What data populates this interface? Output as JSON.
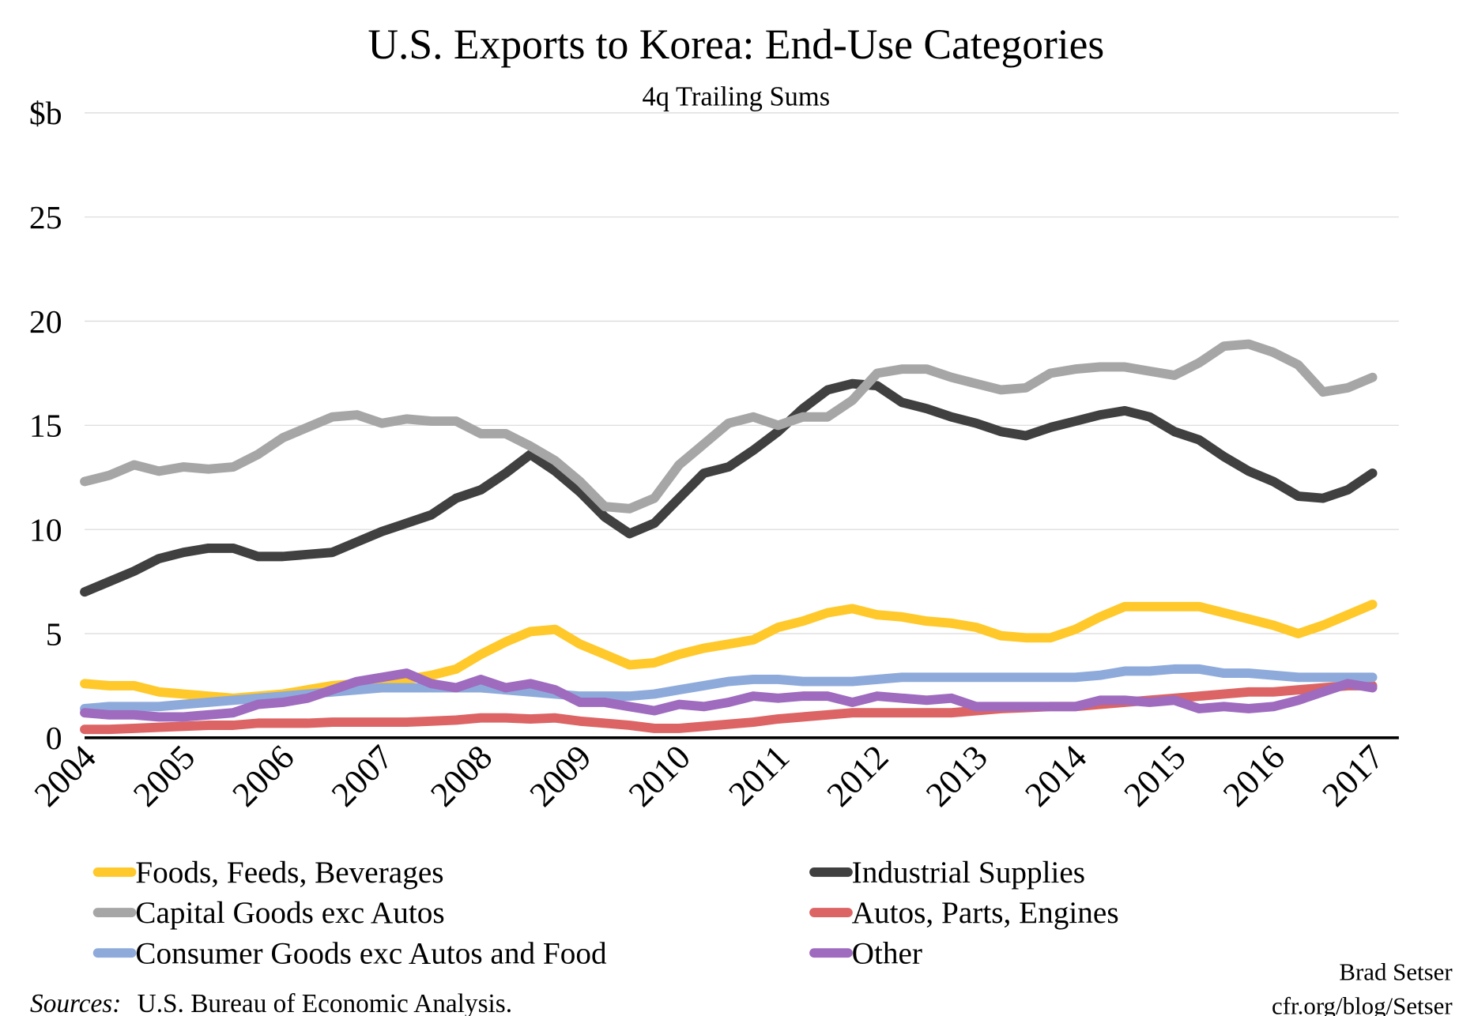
{
  "chart_data": {
    "type": "line",
    "title": "U.S. Exports to Korea: End-Use Categories",
    "subtitle": "4q Trailing Sums",
    "categories": [
      "2004",
      null,
      null,
      null,
      "2005",
      null,
      null,
      null,
      "2006",
      null,
      null,
      null,
      "2007",
      null,
      null,
      null,
      "2008",
      null,
      null,
      null,
      "2009",
      null,
      null,
      null,
      "2010",
      null,
      null,
      null,
      "2011",
      null,
      null,
      null,
      "2012",
      null,
      null,
      null,
      "2013",
      null,
      null,
      null,
      "2014",
      null,
      null,
      null,
      "2015",
      null,
      null,
      null,
      "2016",
      null,
      null,
      null,
      "2017"
    ],
    "ylim": [
      0,
      30
    ],
    "yticks": [
      0,
      5,
      10,
      15,
      20,
      25,
      {
        "value": 30,
        "label": "$b"
      }
    ],
    "grid": true,
    "series": [
      {
        "name": "Foods, Feeds, Beverages",
        "color": "#ffc92b",
        "values": [
          2.6,
          2.5,
          2.5,
          2.2,
          2.1,
          2.0,
          1.9,
          2.0,
          2.1,
          2.3,
          2.5,
          2.6,
          2.7,
          2.8,
          3.0,
          3.3,
          4.0,
          4.6,
          5.1,
          5.2,
          4.5,
          4.0,
          3.5,
          3.6,
          4.0,
          4.3,
          4.5,
          4.7,
          5.3,
          5.6,
          6.0,
          6.2,
          5.9,
          5.8,
          5.6,
          5.5,
          5.3,
          4.9,
          4.8,
          4.8,
          5.2,
          5.8,
          6.3,
          6.3,
          6.3,
          6.3,
          6.0,
          5.7,
          5.4,
          5.0,
          5.4,
          5.9,
          6.4
        ]
      },
      {
        "name": "Industrial Supplies",
        "color": "#404040",
        "values": [
          7.0,
          7.5,
          8.0,
          8.6,
          8.9,
          9.1,
          9.1,
          8.7,
          8.7,
          8.8,
          8.9,
          9.4,
          9.9,
          10.3,
          10.7,
          11.5,
          11.9,
          12.7,
          13.6,
          12.8,
          11.8,
          10.6,
          9.8,
          10.3,
          11.5,
          12.7,
          13.0,
          13.8,
          14.7,
          15.8,
          16.7,
          17.0,
          16.9,
          16.1,
          15.8,
          15.4,
          15.1,
          14.7,
          14.5,
          14.9,
          15.2,
          15.5,
          15.7,
          15.4,
          14.7,
          14.3,
          13.5,
          12.8,
          12.3,
          11.6,
          11.5,
          11.9,
          12.7
        ]
      },
      {
        "name": "Capital Goods exc Autos",
        "color": "#a6a6a6",
        "values": [
          12.3,
          12.6,
          13.1,
          12.8,
          13.0,
          12.9,
          13.0,
          13.6,
          14.4,
          14.9,
          15.4,
          15.5,
          15.1,
          15.3,
          15.2,
          15.2,
          14.6,
          14.6,
          14.0,
          13.3,
          12.3,
          11.1,
          11.0,
          11.5,
          13.1,
          14.1,
          15.1,
          15.4,
          15.0,
          15.4,
          15.4,
          16.2,
          17.5,
          17.7,
          17.7,
          17.3,
          17.0,
          16.7,
          16.8,
          17.5,
          17.7,
          17.8,
          17.8,
          17.6,
          17.4,
          18.0,
          18.8,
          18.9,
          18.5,
          17.9,
          16.6,
          16.8,
          17.3
        ]
      },
      {
        "name": "Autos, Parts, Engines",
        "color": "#dc6464",
        "values": [
          0.4,
          0.4,
          0.45,
          0.5,
          0.55,
          0.6,
          0.6,
          0.7,
          0.7,
          0.7,
          0.75,
          0.75,
          0.75,
          0.75,
          0.8,
          0.85,
          0.95,
          0.95,
          0.9,
          0.95,
          0.8,
          0.7,
          0.6,
          0.45,
          0.45,
          0.55,
          0.65,
          0.75,
          0.9,
          1.0,
          1.1,
          1.2,
          1.2,
          1.2,
          1.2,
          1.2,
          1.3,
          1.4,
          1.45,
          1.5,
          1.5,
          1.6,
          1.7,
          1.8,
          1.9,
          2.0,
          2.1,
          2.2,
          2.2,
          2.3,
          2.4,
          2.5,
          2.5
        ]
      },
      {
        "name": "Consumer Goods exc Autos and Food",
        "color": "#8eaadb",
        "values": [
          1.4,
          1.5,
          1.5,
          1.5,
          1.6,
          1.7,
          1.8,
          1.9,
          2.0,
          2.1,
          2.2,
          2.3,
          2.4,
          2.4,
          2.4,
          2.4,
          2.4,
          2.3,
          2.2,
          2.1,
          2.0,
          2.0,
          2.0,
          2.1,
          2.3,
          2.5,
          2.7,
          2.8,
          2.8,
          2.7,
          2.7,
          2.7,
          2.8,
          2.9,
          2.9,
          2.9,
          2.9,
          2.9,
          2.9,
          2.9,
          2.9,
          3.0,
          3.2,
          3.2,
          3.3,
          3.3,
          3.1,
          3.1,
          3.0,
          2.9,
          2.9,
          2.9,
          2.9
        ]
      },
      {
        "name": "Other",
        "color": "#9e6bbf",
        "values": [
          1.2,
          1.1,
          1.1,
          1.0,
          1.0,
          1.1,
          1.2,
          1.6,
          1.7,
          1.9,
          2.3,
          2.7,
          2.9,
          3.1,
          2.6,
          2.4,
          2.8,
          2.4,
          2.6,
          2.3,
          1.7,
          1.7,
          1.5,
          1.3,
          1.6,
          1.5,
          1.7,
          2.0,
          1.9,
          2.0,
          2.0,
          1.7,
          2.0,
          1.9,
          1.8,
          1.9,
          1.5,
          1.5,
          1.5,
          1.5,
          1.5,
          1.8,
          1.8,
          1.7,
          1.8,
          1.4,
          1.5,
          1.4,
          1.5,
          1.8,
          2.2,
          2.6,
          2.4
        ]
      }
    ],
    "source_label": "Sources:",
    "source": "U.S. Bureau of Economic Analysis.",
    "credit": "Brad Setser",
    "credit_url": "cfr.org/blog/Setser"
  }
}
